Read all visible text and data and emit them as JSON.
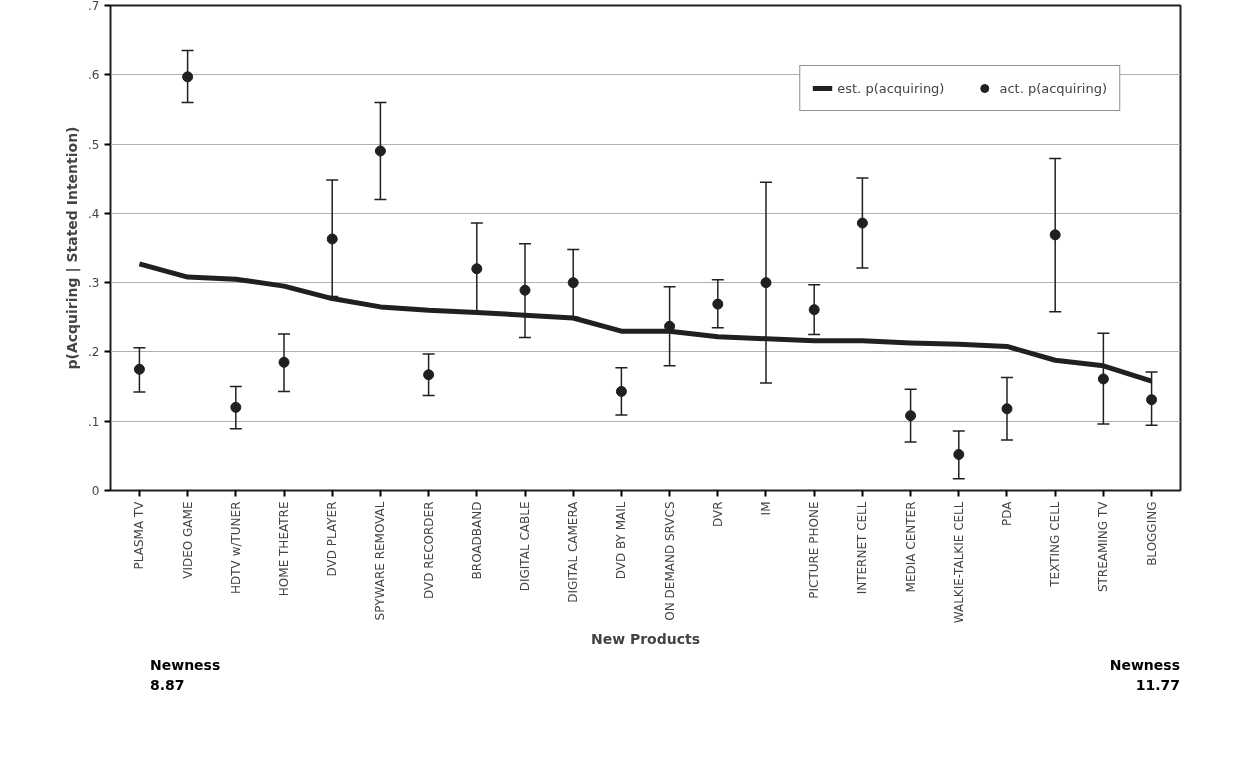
{
  "chart_data": {
    "type": "scatter",
    "xlabel": "New Products",
    "ylabel": "p(Acquiring | Stated Intention)",
    "categories": [
      "PLASMA TV",
      "VIDEO GAME",
      "HDTV w/TUNER",
      "HOME THEATRE",
      "DVD PLAYER",
      "SPYWARE REMOVAL",
      "DVD RECORDER",
      "BROADBAND",
      "DIGITAL CABLE",
      "DIGITAL CAMERA",
      "DVD BY MAIL",
      "ON DEMAND SRVCS",
      "DVR",
      "IM",
      "PICTURE PHONE",
      "INTERNET CELL",
      "MEDIA CENTER",
      "WALKIE-TALKIE CELL",
      "PDA",
      "TEXTING CELL",
      "STREAMING TV",
      "BLOGGING"
    ],
    "series": [
      {
        "name": "est. p(acquiring)",
        "type": "line",
        "color": "#231f20",
        "values": [
          0.327,
          0.308,
          0.305,
          0.295,
          0.277,
          0.265,
          0.26,
          0.257,
          0.253,
          0.249,
          0.23,
          0.23,
          0.222,
          0.219,
          0.216,
          0.216,
          0.213,
          0.211,
          0.208,
          0.188,
          0.18,
          0.158
        ]
      },
      {
        "name": "act. p(acquiring)",
        "color": "#231f20",
        "marker": "circle",
        "values": [
          0.175,
          0.597,
          0.12,
          0.185,
          0.363,
          0.49,
          0.167,
          0.32,
          0.289,
          0.3,
          0.143,
          0.237,
          0.269,
          0.3,
          0.261,
          0.386,
          0.108,
          0.052,
          0.118,
          0.369,
          0.161,
          0.131
        ],
        "errors": [
          [
            0.142,
            0.206
          ],
          [
            0.56,
            0.635
          ],
          [
            0.089,
            0.15
          ],
          [
            0.143,
            0.226
          ],
          [
            0.28,
            0.448
          ],
          [
            0.42,
            0.56
          ],
          [
            0.137,
            0.197
          ],
          [
            0.258,
            0.386
          ],
          [
            0.221,
            0.356
          ],
          [
            0.25,
            0.348
          ],
          [
            0.109,
            0.177
          ],
          [
            0.18,
            0.294
          ],
          [
            0.235,
            0.304
          ],
          [
            0.155,
            0.445
          ],
          [
            0.225,
            0.297
          ],
          [
            0.321,
            0.451
          ],
          [
            0.07,
            0.146
          ],
          [
            0.017,
            0.086
          ],
          [
            0.073,
            0.163
          ],
          [
            0.258,
            0.479
          ],
          [
            0.096,
            0.227
          ],
          [
            0.094,
            0.171
          ]
        ]
      }
    ],
    "ylim": [
      0,
      0.7
    ],
    "yticks": [
      0,
      {
        "value": 0.1,
        "label": ".1"
      },
      {
        "value": 0.2,
        "label": ".2"
      },
      {
        "value": 0.3,
        "label": ".3"
      },
      {
        "value": 0.4,
        "label": ".4"
      },
      {
        "value": 0.5,
        "label": ".5"
      },
      {
        "value": 0.6,
        "label": ".6"
      },
      {
        "value": 0.7,
        "label": ".7"
      }
    ],
    "grid": "y",
    "legend": "top right",
    "annotations": [
      "Newness\n8.87",
      "Newness\n11.77"
    ]
  }
}
